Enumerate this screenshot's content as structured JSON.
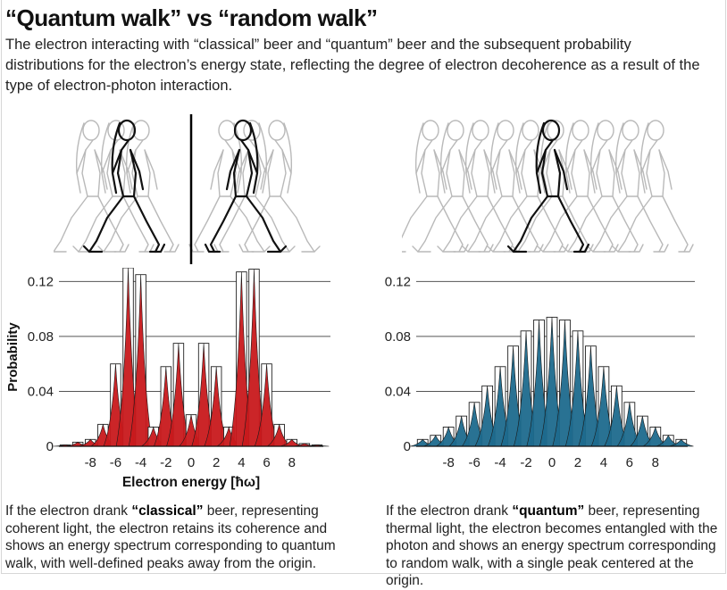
{
  "header": {
    "title": "“Quantum walk” vs “random walk”",
    "subtitle": "The electron interacting with “classical” beer and “quantum” beer and the subsequent probability distributions for the electron’s energy state, reflecting the degree of electron decoherence as a result of the type of electron-photon interaction."
  },
  "colors": {
    "classical": "#c8191c",
    "quantum": "#1e6a8d",
    "grid": "#555555",
    "walker_faded": "#b9b9b9",
    "walker_main": "#111111"
  },
  "illustrations": {
    "left": {
      "icon": "walking-woman-icon",
      "description_hidden": true
    },
    "right": {
      "icon": "walking-woman-icon",
      "description_hidden": true
    }
  },
  "captions": {
    "left": {
      "pre": "If the electron drank ",
      "bold": "“classical”",
      "post": " beer, representing coherent light, the electron retains its coherence and shows an energy spectrum corresponding to quantum walk, with well-defined peaks away from the origin."
    },
    "right": {
      "pre": "If the electron drank ",
      "bold": "“quantum”",
      "post": " beer, representing thermal light, the electron becomes entangled with the photon and shows an energy spectrum corresponding to random walk, with a single peak centered at the origin."
    }
  },
  "chart_data": [
    {
      "type": "bar",
      "series_color": "classical",
      "ylabel": "Probability",
      "xlabel": "Electron energy [ħω]",
      "ylim": [
        0,
        0.13
      ],
      "yticks": [
        0,
        0.04,
        0.08,
        0.12
      ],
      "ytick_labels": [
        "0",
        "0.04",
        "0.08",
        "0.12"
      ],
      "xticks": [
        -8,
        -6,
        -4,
        -2,
        0,
        2,
        4,
        6,
        8
      ],
      "xlim": [
        -10,
        10
      ],
      "x": [
        -10,
        -9,
        -8,
        -7,
        -6,
        -5,
        -4,
        -3,
        -2,
        -1,
        0,
        1,
        2,
        3,
        4,
        5,
        6,
        7,
        8,
        9,
        10
      ],
      "values": [
        0.001,
        0.003,
        0.005,
        0.016,
        0.06,
        0.13,
        0.125,
        0.014,
        0.058,
        0.075,
        0.023,
        0.075,
        0.058,
        0.014,
        0.127,
        0.129,
        0.06,
        0.016,
        0.005,
        0.002,
        0.001
      ]
    },
    {
      "type": "bar",
      "series_color": "quantum",
      "ylabel": "",
      "xlabel": "",
      "ylim": [
        0,
        0.13
      ],
      "yticks": [
        0,
        0.04,
        0.08,
        0.12
      ],
      "ytick_labels": [
        "0",
        "0.04",
        "0.08",
        "0.12"
      ],
      "xticks": [
        -8,
        -6,
        -4,
        -2,
        0,
        2,
        4,
        6,
        8
      ],
      "xlim": [
        -10,
        10
      ],
      "x": [
        -10,
        -9,
        -8,
        -7,
        -6,
        -5,
        -4,
        -3,
        -2,
        -1,
        0,
        1,
        2,
        3,
        4,
        5,
        6,
        7,
        8,
        9,
        10
      ],
      "values": [
        0.005,
        0.008,
        0.014,
        0.022,
        0.032,
        0.044,
        0.058,
        0.073,
        0.084,
        0.092,
        0.094,
        0.092,
        0.084,
        0.073,
        0.058,
        0.044,
        0.032,
        0.022,
        0.014,
        0.008,
        0.005
      ]
    }
  ]
}
